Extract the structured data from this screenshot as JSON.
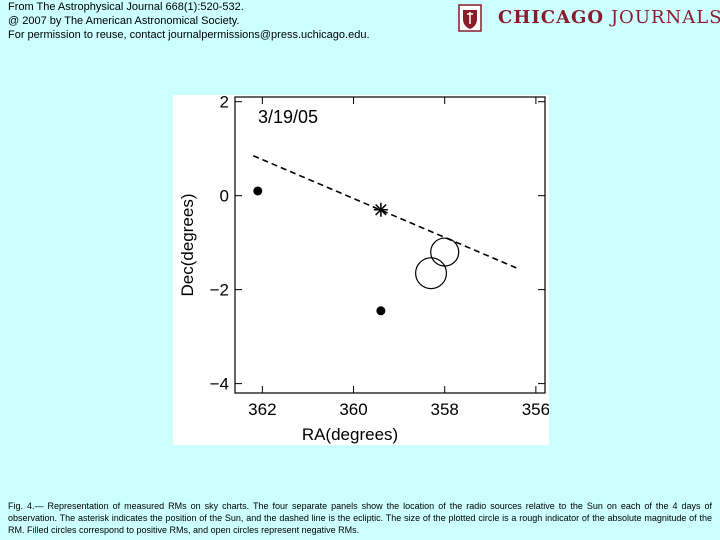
{
  "header": {
    "line1": "From The Astrophysical Journal 668(1):520-532.",
    "line2": "@ 2007 by The American Astronomical Society.",
    "line3": "For permission to reuse, contact journalpermissions@press.uchicago.edu."
  },
  "logo": {
    "word1": "CHICAGO",
    "word2": "JOURNALS",
    "brand_color": "#8a1b2a",
    "icon": "shield-emblem-icon"
  },
  "chart_data": {
    "type": "scatter",
    "title": "3/19/05",
    "xlabel": "RA(degrees)",
    "ylabel": "Dec(degrees)",
    "xlim": [
      362.6,
      355.8
    ],
    "ylim": [
      -4.2,
      2.1
    ],
    "xticks": [
      {
        "v": 362,
        "label": "362"
      },
      {
        "v": 360,
        "label": "360"
      },
      {
        "v": 358,
        "label": "358"
      },
      {
        "v": 356,
        "label": "356"
      }
    ],
    "yticks": [
      {
        "v": 2,
        "label": "2"
      },
      {
        "v": 0,
        "label": "0"
      },
      {
        "v": -2,
        "label": "−2"
      },
      {
        "v": -4,
        "label": "−4"
      }
    ],
    "sun": {
      "x": 359.4,
      "y": -0.3,
      "marker": "asterisk"
    },
    "ecliptic": {
      "style": "dashed",
      "x": [
        362.2,
        356.4
      ],
      "y": [
        0.85,
        -1.55
      ]
    },
    "filled_circles": [
      {
        "x": 362.1,
        "y": 0.1
      },
      {
        "x": 359.4,
        "y": -2.45
      }
    ],
    "open_circles": [
      {
        "x": 358.0,
        "y": -1.2,
        "size": 1.0
      },
      {
        "x": 358.3,
        "y": -1.65,
        "size": 1.1
      }
    ],
    "grid": false,
    "background": "#ffffff"
  },
  "caption": {
    "text": "Fig. 4.— Representation of measured RMs on sky charts. The four separate panels show the location of the radio sources relative to the Sun on each of the 4 days of observation. The asterisk indicates the position of the Sun, and the dashed line is the ecliptic. The size of the plotted circle is a rough indicator of the absolute magnitude of the RM. Filled circles correspond to positive RMs, and open circles represent negative RMs."
  }
}
